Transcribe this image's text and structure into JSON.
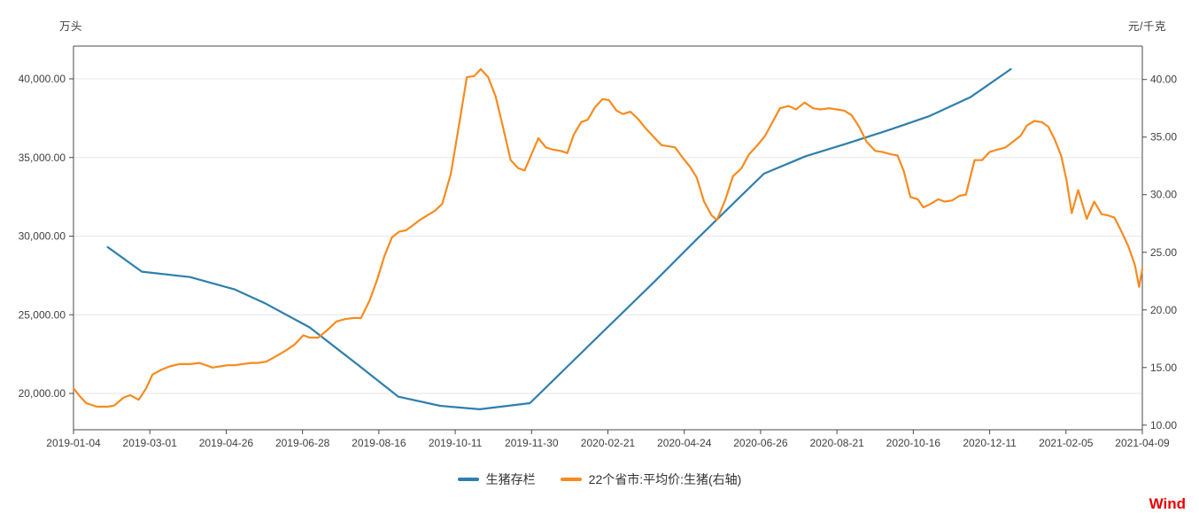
{
  "header": {
    "left_unit": "万头",
    "right_unit": "元/千克"
  },
  "legend": [
    {
      "label": "生猪存栏",
      "color": "#2e7fad"
    },
    {
      "label": "22个省市:平均价:生猪(右轴)",
      "color": "#f78b1f"
    }
  ],
  "watermark": {
    "text": "Wind",
    "color": "#e60000"
  },
  "styles": {
    "axis_color": "#4a4a4a",
    "grid_color": "#e6e6e6",
    "tick_label_color": "#404040",
    "background": "#ffffff"
  },
  "chart_data": {
    "type": "line",
    "title": "",
    "grid": "horizontal-only, at left-axis ticks",
    "legend_position": "bottom-center",
    "x_tick_labels": [
      "2019-01-04",
      "2019-03-01",
      "2019-04-26",
      "2019-06-28",
      "2019-08-16",
      "2019-10-11",
      "2019-11-30",
      "2020-02-21",
      "2020-04-24",
      "2020-06-26",
      "2020-08-21",
      "2020-10-16",
      "2020-12-11",
      "2021-02-05",
      "2021-04-09"
    ],
    "x_note": "series point x values are fractions 0-1 across the category axis (0 = 2019-01-04, 1 = 2021-04-09)",
    "left_axis": {
      "unit": "万头",
      "min": 17690,
      "max": 42085,
      "ticks": [
        20000,
        25000,
        30000,
        35000,
        40000
      ],
      "tick_format": "#,##0.00"
    },
    "right_axis": {
      "unit": "元/千克",
      "min": 9.6,
      "max": 42.9,
      "ticks": [
        10,
        15,
        20,
        25,
        30,
        35,
        40
      ],
      "tick_format": "0.00"
    },
    "series": [
      {
        "name": "生猪存栏",
        "axis": "left",
        "unit": "万头",
        "color": "#2e7fad",
        "points": [
          [
            0.032,
            29300
          ],
          [
            0.064,
            27740
          ],
          [
            0.109,
            27400
          ],
          [
            0.151,
            26610
          ],
          [
            0.18,
            25700
          ],
          [
            0.221,
            24200
          ],
          [
            0.265,
            21870
          ],
          [
            0.304,
            19790
          ],
          [
            0.343,
            19210
          ],
          [
            0.38,
            18990
          ],
          [
            0.427,
            19380
          ],
          [
            0.466,
            21970
          ],
          [
            0.505,
            24560
          ],
          [
            0.544,
            27140
          ],
          [
            0.582,
            29730
          ],
          [
            0.621,
            32320
          ],
          [
            0.646,
            33970
          ],
          [
            0.685,
            35080
          ],
          [
            0.724,
            35900
          ],
          [
            0.763,
            36750
          ],
          [
            0.801,
            37640
          ],
          [
            0.839,
            38830
          ],
          [
            0.877,
            40620
          ]
        ]
      },
      {
        "name": "22个省市:平均价:生猪(右轴)",
        "axis": "right",
        "unit": "元/千克",
        "color": "#f78b1f",
        "points": [
          [
            0.0,
            13.2
          ],
          [
            0.006,
            12.5
          ],
          [
            0.012,
            11.9
          ],
          [
            0.022,
            11.6
          ],
          [
            0.032,
            11.6
          ],
          [
            0.038,
            11.7
          ],
          [
            0.047,
            12.4
          ],
          [
            0.053,
            12.6
          ],
          [
            0.061,
            12.2
          ],
          [
            0.068,
            13.2
          ],
          [
            0.074,
            14.4
          ],
          [
            0.082,
            14.8
          ],
          [
            0.09,
            15.1
          ],
          [
            0.099,
            15.3
          ],
          [
            0.109,
            15.3
          ],
          [
            0.118,
            15.4
          ],
          [
            0.124,
            15.2
          ],
          [
            0.13,
            15.0
          ],
          [
            0.137,
            15.1
          ],
          [
            0.144,
            15.2
          ],
          [
            0.151,
            15.2
          ],
          [
            0.158,
            15.3
          ],
          [
            0.166,
            15.4
          ],
          [
            0.172,
            15.4
          ],
          [
            0.18,
            15.5
          ],
          [
            0.19,
            16.0
          ],
          [
            0.199,
            16.5
          ],
          [
            0.207,
            17.0
          ],
          [
            0.215,
            17.8
          ],
          [
            0.221,
            17.6
          ],
          [
            0.229,
            17.6
          ],
          [
            0.238,
            18.3
          ],
          [
            0.246,
            19.0
          ],
          [
            0.254,
            19.2
          ],
          [
            0.262,
            19.3
          ],
          [
            0.269,
            19.3
          ],
          [
            0.277,
            20.8
          ],
          [
            0.284,
            22.6
          ],
          [
            0.291,
            24.7
          ],
          [
            0.298,
            26.3
          ],
          [
            0.305,
            26.8
          ],
          [
            0.311,
            26.9
          ],
          [
            0.317,
            27.3
          ],
          [
            0.324,
            27.8
          ],
          [
            0.331,
            28.2
          ],
          [
            0.338,
            28.6
          ],
          [
            0.345,
            29.2
          ],
          [
            0.353,
            31.8
          ],
          [
            0.361,
            36.2
          ],
          [
            0.368,
            40.2
          ],
          [
            0.375,
            40.3
          ],
          [
            0.381,
            40.9
          ],
          [
            0.388,
            40.2
          ],
          [
            0.395,
            38.5
          ],
          [
            0.402,
            35.8
          ],
          [
            0.409,
            33.0
          ],
          [
            0.416,
            32.3
          ],
          [
            0.422,
            32.1
          ],
          [
            0.428,
            33.4
          ],
          [
            0.435,
            34.9
          ],
          [
            0.442,
            34.1
          ],
          [
            0.449,
            33.9
          ],
          [
            0.456,
            33.8
          ],
          [
            0.462,
            33.6
          ],
          [
            0.468,
            35.2
          ],
          [
            0.475,
            36.3
          ],
          [
            0.481,
            36.5
          ],
          [
            0.488,
            37.6
          ],
          [
            0.495,
            38.3
          ],
          [
            0.501,
            38.2
          ],
          [
            0.508,
            37.3
          ],
          [
            0.514,
            37.0
          ],
          [
            0.521,
            37.2
          ],
          [
            0.528,
            36.6
          ],
          [
            0.535,
            35.8
          ],
          [
            0.543,
            35.0
          ],
          [
            0.55,
            34.3
          ],
          [
            0.557,
            34.2
          ],
          [
            0.563,
            34.1
          ],
          [
            0.57,
            33.2
          ],
          [
            0.577,
            32.4
          ],
          [
            0.583,
            31.5
          ],
          [
            0.59,
            29.4
          ],
          [
            0.597,
            28.2
          ],
          [
            0.602,
            27.8
          ],
          [
            0.61,
            29.6
          ],
          [
            0.617,
            31.6
          ],
          [
            0.625,
            32.3
          ],
          [
            0.632,
            33.5
          ],
          [
            0.64,
            34.3
          ],
          [
            0.647,
            35.1
          ],
          [
            0.654,
            36.3
          ],
          [
            0.661,
            37.5
          ],
          [
            0.669,
            37.7
          ],
          [
            0.676,
            37.4
          ],
          [
            0.684,
            38.0
          ],
          [
            0.692,
            37.5
          ],
          [
            0.699,
            37.4
          ],
          [
            0.707,
            37.5
          ],
          [
            0.714,
            37.4
          ],
          [
            0.721,
            37.3
          ],
          [
            0.728,
            36.9
          ],
          [
            0.735,
            35.9
          ],
          [
            0.742,
            34.6
          ],
          [
            0.75,
            33.8
          ],
          [
            0.757,
            33.7
          ],
          [
            0.765,
            33.5
          ],
          [
            0.771,
            33.4
          ],
          [
            0.777,
            32.0
          ],
          [
            0.783,
            29.8
          ],
          [
            0.79,
            29.6
          ],
          [
            0.795,
            28.9
          ],
          [
            0.802,
            29.2
          ],
          [
            0.809,
            29.6
          ],
          [
            0.815,
            29.4
          ],
          [
            0.822,
            29.5
          ],
          [
            0.829,
            29.9
          ],
          [
            0.835,
            30.0
          ],
          [
            0.843,
            33.0
          ],
          [
            0.85,
            33.0
          ],
          [
            0.857,
            33.7
          ],
          [
            0.864,
            33.9
          ],
          [
            0.872,
            34.1
          ],
          [
            0.879,
            34.6
          ],
          [
            0.886,
            35.1
          ],
          [
            0.892,
            36.0
          ],
          [
            0.899,
            36.4
          ],
          [
            0.906,
            36.3
          ],
          [
            0.912,
            35.9
          ],
          [
            0.918,
            34.8
          ],
          [
            0.924,
            33.4
          ],
          [
            0.929,
            31.3
          ],
          [
            0.934,
            28.4
          ],
          [
            0.94,
            30.4
          ],
          [
            0.948,
            27.9
          ],
          [
            0.955,
            29.4
          ],
          [
            0.962,
            28.3
          ],
          [
            0.968,
            28.2
          ],
          [
            0.974,
            28.0
          ],
          [
            0.981,
            26.7
          ],
          [
            0.987,
            25.5
          ],
          [
            0.993,
            23.9
          ],
          [
            0.997,
            22.0
          ],
          [
            1.0,
            23.6
          ]
        ]
      }
    ]
  }
}
